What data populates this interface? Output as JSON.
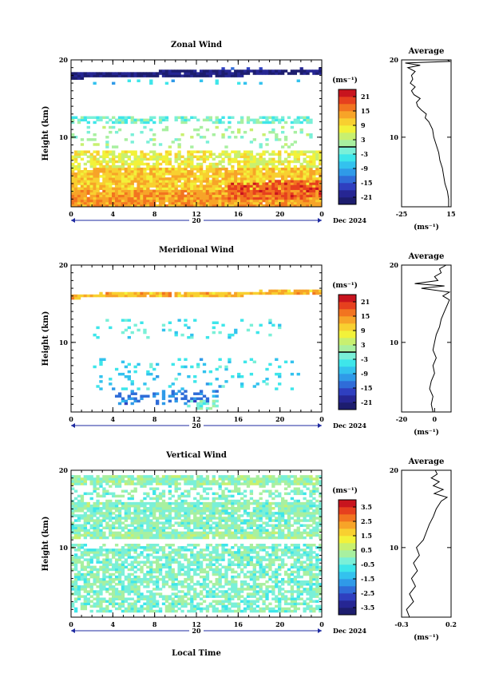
{
  "figure": {
    "xlabel": "Local Time",
    "date_label": "Dec 2024",
    "day_label": "20",
    "ylabel": "Height (km)",
    "unit": "(ms⁻¹)",
    "average_title": "Average"
  },
  "chart_data": [
    {
      "type": "heatmap",
      "title": "Zonal Wind",
      "xlabel": "Local Time",
      "ylabel": "Height (km)",
      "xlim": [
        0,
        24
      ],
      "ylim": [
        1,
        20
      ],
      "x_ticks": [
        "0",
        "4",
        "8",
        "12",
        "16",
        "20",
        "0"
      ],
      "x_tick_values": [
        0,
        4,
        8,
        12,
        16,
        20,
        24
      ],
      "y_ticks": [
        "10",
        "20"
      ],
      "y_tick_values": [
        10,
        20
      ],
      "colorbar": {
        "unit": "(ms⁻¹)",
        "min": -24,
        "max": 24,
        "ticks": [
          "21",
          "15",
          "9",
          "3",
          "-3",
          "-9",
          "-15",
          "-21"
        ],
        "tick_values": [
          21,
          15,
          9,
          3,
          -3,
          -9,
          -15,
          -21
        ],
        "zero_line": true
      },
      "bands": [
        {
          "h0": 17.6,
          "h1": 18.4,
          "v": -22,
          "density": 0.95,
          "t0": 0,
          "t1": 24,
          "tilt": 0.5
        },
        {
          "h0": 18.6,
          "h1": 19.0,
          "v": -18,
          "density": 0.25,
          "t0": 13,
          "t1": 24,
          "tilt": 0
        },
        {
          "h0": 16.8,
          "h1": 17.4,
          "v": -6,
          "density": 0.1,
          "t0": 2,
          "t1": 22,
          "tilt": 0
        },
        {
          "h0": 11.8,
          "h1": 12.8,
          "v": -2,
          "density": 0.55,
          "t0": 0,
          "t1": 23,
          "tilt": 0
        },
        {
          "h0": 8.5,
          "h1": 11.6,
          "v": 1,
          "density": 0.15,
          "t0": 0,
          "t1": 23,
          "tilt": 0
        },
        {
          "h0": 6.2,
          "h1": 8.4,
          "v": 7,
          "density": 0.7,
          "t0": 0,
          "t1": 24,
          "tilt": 0
        },
        {
          "h0": 3.2,
          "h1": 6.2,
          "v": 11,
          "density": 0.95,
          "t0": 0,
          "t1": 24,
          "tilt": 0
        },
        {
          "h0": 1.0,
          "h1": 3.2,
          "v": 14,
          "density": 0.98,
          "t0": 0,
          "t1": 24,
          "tilt": 0
        },
        {
          "h0": 1.0,
          "h1": 3.4,
          "v": 18,
          "density": 0.9,
          "t0": 15,
          "t1": 24,
          "tilt": 1.2
        }
      ],
      "average": {
        "xlim": [
          -25,
          15
        ],
        "x_ticks": [
          "-25",
          "15"
        ],
        "x_tick_values": [
          -25,
          15
        ],
        "ylim": [
          1,
          20
        ],
        "y_ticks": [
          "10",
          "20"
        ],
        "y_tick_values": [
          10,
          20
        ],
        "x_unit": "(ms⁻¹)",
        "profile": [
          {
            "h": 1.0,
            "v": 13
          },
          {
            "h": 2.0,
            "v": 13
          },
          {
            "h": 3.0,
            "v": 12
          },
          {
            "h": 4.0,
            "v": 10
          },
          {
            "h": 5.0,
            "v": 9
          },
          {
            "h": 6.0,
            "v": 8
          },
          {
            "h": 7.0,
            "v": 6
          },
          {
            "h": 8.0,
            "v": 5
          },
          {
            "h": 9.0,
            "v": 3
          },
          {
            "h": 10.0,
            "v": 1
          },
          {
            "h": 11.0,
            "v": 0
          },
          {
            "h": 12.0,
            "v": -3
          },
          {
            "h": 12.5,
            "v": -6
          },
          {
            "h": 13.0,
            "v": -5
          },
          {
            "h": 13.5,
            "v": -9
          },
          {
            "h": 14.0,
            "v": -12
          },
          {
            "h": 14.5,
            "v": -13
          },
          {
            "h": 15.0,
            "v": -10
          },
          {
            "h": 15.5,
            "v": -15
          },
          {
            "h": 16.0,
            "v": -17
          },
          {
            "h": 16.5,
            "v": -14
          },
          {
            "h": 17.0,
            "v": -18
          },
          {
            "h": 17.5,
            "v": -16
          },
          {
            "h": 18.0,
            "v": -17
          },
          {
            "h": 18.5,
            "v": -14
          },
          {
            "h": 19.0,
            "v": -20
          },
          {
            "h": 19.3,
            "v": -10
          },
          {
            "h": 19.6,
            "v": -22
          },
          {
            "h": 19.8,
            "v": 14
          },
          {
            "h": 20.0,
            "v": 12
          }
        ]
      }
    },
    {
      "type": "heatmap",
      "title": "Meridional Wind",
      "xlabel": "Local Time",
      "ylabel": "Height (km)",
      "xlim": [
        0,
        24
      ],
      "ylim": [
        1,
        20
      ],
      "x_ticks": [
        "0",
        "4",
        "8",
        "12",
        "16",
        "20",
        "0"
      ],
      "x_tick_values": [
        0,
        4,
        8,
        12,
        16,
        20,
        24
      ],
      "y_ticks": [
        "10",
        "20"
      ],
      "y_tick_values": [
        10,
        20
      ],
      "colorbar": {
        "unit": "(ms⁻¹)",
        "min": -24,
        "max": 24,
        "ticks": [
          "21",
          "15",
          "9",
          "3",
          "-3",
          "-9",
          "-15",
          "-21"
        ],
        "tick_values": [
          21,
          15,
          9,
          3,
          -3,
          -9,
          -15,
          -21
        ],
        "zero_line": true
      },
      "bands": [
        {
          "h0": 15.7,
          "h1": 16.3,
          "v": 12,
          "density": 0.95,
          "t0": 0,
          "t1": 24,
          "tilt": 0.5
        },
        {
          "h0": 10.5,
          "h1": 13.0,
          "v": -4,
          "density": 0.12,
          "t0": 2,
          "t1": 20,
          "tilt": 0
        },
        {
          "h0": 4.0,
          "h1": 8.0,
          "v": -6,
          "density": 0.14,
          "t0": 2,
          "t1": 22,
          "tilt": 0
        },
        {
          "h0": 2.0,
          "h1": 4.0,
          "v": -12,
          "density": 0.3,
          "t0": 4,
          "t1": 14,
          "tilt": 0
        },
        {
          "h0": 1.3,
          "h1": 2.5,
          "v": -1,
          "density": 0.6,
          "t0": 11,
          "t1": 14,
          "tilt": 0
        }
      ],
      "average": {
        "xlim": [
          -20,
          10
        ],
        "x_ticks": [
          "-20",
          "0"
        ],
        "x_tick_values": [
          -20,
          0
        ],
        "ylim": [
          1,
          20
        ],
        "y_ticks": [
          "10",
          "20"
        ],
        "y_tick_values": [
          10,
          20
        ],
        "x_unit": "(ms⁻¹)",
        "profile": [
          {
            "h": 1.0,
            "v": -1
          },
          {
            "h": 2.0,
            "v": -2
          },
          {
            "h": 3.0,
            "v": -1
          },
          {
            "h": 4.0,
            "v": -3
          },
          {
            "h": 5.0,
            "v": -2
          },
          {
            "h": 6.0,
            "v": 0
          },
          {
            "h": 7.0,
            "v": -1
          },
          {
            "h": 8.0,
            "v": 1
          },
          {
            "h": 9.0,
            "v": -1
          },
          {
            "h": 10.0,
            "v": 0
          },
          {
            "h": 11.0,
            "v": 1
          },
          {
            "h": 12.0,
            "v": 3
          },
          {
            "h": 13.0,
            "v": 4
          },
          {
            "h": 14.0,
            "v": 6
          },
          {
            "h": 15.0,
            "v": 8
          },
          {
            "h": 15.5,
            "v": 9
          },
          {
            "h": 16.0,
            "v": 5
          },
          {
            "h": 16.5,
            "v": 9
          },
          {
            "h": 17.0,
            "v": -8
          },
          {
            "h": 17.3,
            "v": 6
          },
          {
            "h": 17.6,
            "v": -12
          },
          {
            "h": 18.0,
            "v": 2
          },
          {
            "h": 18.5,
            "v": 0
          },
          {
            "h": 19.0,
            "v": 4
          },
          {
            "h": 19.5,
            "v": 3
          },
          {
            "h": 20.0,
            "v": 7
          }
        ]
      }
    },
    {
      "type": "heatmap",
      "title": "Vertical Wind",
      "xlabel": "Local Time",
      "ylabel": "Height (km)",
      "xlim": [
        0,
        24
      ],
      "ylim": [
        1,
        20
      ],
      "x_ticks": [
        "0",
        "4",
        "8",
        "12",
        "16",
        "20",
        "0"
      ],
      "x_tick_values": [
        0,
        4,
        8,
        12,
        16,
        20,
        24
      ],
      "y_ticks": [
        "10",
        "20"
      ],
      "y_tick_values": [
        10,
        20
      ],
      "colorbar": {
        "unit": "(ms⁻¹)",
        "min": -4,
        "max": 4,
        "ticks": [
          "3.5",
          "2.5",
          "1.5",
          "0.5",
          "-0.5",
          "-1.5",
          "-2.5",
          "-3.5"
        ],
        "tick_values": [
          3.5,
          2.5,
          1.5,
          0.5,
          -0.5,
          -1.5,
          -2.5,
          -3.5
        ],
        "zero_line": false
      },
      "bands": [
        {
          "h0": 18.0,
          "h1": 19.5,
          "v": 0.1,
          "density": 0.85,
          "t0": 0,
          "t1": 24,
          "tilt": 0
        },
        {
          "h0": 16.0,
          "h1": 18.0,
          "v": -0.1,
          "density": 0.35,
          "t0": 0,
          "t1": 24,
          "tilt": 0
        },
        {
          "h0": 15.0,
          "h1": 16.0,
          "v": 0.0,
          "density": 0.9,
          "t0": 0,
          "t1": 24,
          "tilt": 0
        },
        {
          "h0": 12.0,
          "h1": 15.0,
          "v": -0.1,
          "density": 0.75,
          "t0": 0,
          "t1": 24,
          "tilt": 0
        },
        {
          "h0": 11.0,
          "h1": 12.0,
          "v": 0.2,
          "density": 0.92,
          "t0": 0,
          "t1": 24,
          "tilt": 0
        },
        {
          "h0": 1.5,
          "h1": 10.5,
          "v": -0.1,
          "density": 0.68,
          "t0": 0,
          "t1": 24,
          "tilt": 0
        }
      ],
      "average": {
        "xlim": [
          -0.3,
          0.2
        ],
        "x_ticks": [
          "-0.3",
          "0.2"
        ],
        "x_tick_values": [
          -0.3,
          0.2
        ],
        "ylim": [
          1,
          20
        ],
        "y_ticks": [
          "10",
          "20"
        ],
        "y_tick_values": [
          10,
          20
        ],
        "x_unit": "(ms⁻¹)",
        "profile": [
          {
            "h": 1.0,
            "v": -0.22
          },
          {
            "h": 2.0,
            "v": -0.25
          },
          {
            "h": 3.0,
            "v": -0.18
          },
          {
            "h": 4.0,
            "v": -0.22
          },
          {
            "h": 5.0,
            "v": -0.16
          },
          {
            "h": 6.0,
            "v": -0.2
          },
          {
            "h": 7.0,
            "v": -0.14
          },
          {
            "h": 8.0,
            "v": -0.18
          },
          {
            "h": 9.0,
            "v": -0.12
          },
          {
            "h": 10.0,
            "v": -0.15
          },
          {
            "h": 11.0,
            "v": -0.08
          },
          {
            "h": 12.0,
            "v": -0.05
          },
          {
            "h": 13.0,
            "v": -0.02
          },
          {
            "h": 14.0,
            "v": 0.02
          },
          {
            "h": 15.0,
            "v": 0.05
          },
          {
            "h": 16.0,
            "v": 0.1
          },
          {
            "h": 16.5,
            "v": 0.16
          },
          {
            "h": 17.0,
            "v": 0.03
          },
          {
            "h": 17.5,
            "v": 0.12
          },
          {
            "h": 18.0,
            "v": 0.02
          },
          {
            "h": 18.5,
            "v": 0.08
          },
          {
            "h": 19.0,
            "v": 0.0
          },
          {
            "h": 19.5,
            "v": 0.06
          },
          {
            "h": 20.0,
            "v": 0.04
          }
        ]
      }
    }
  ]
}
